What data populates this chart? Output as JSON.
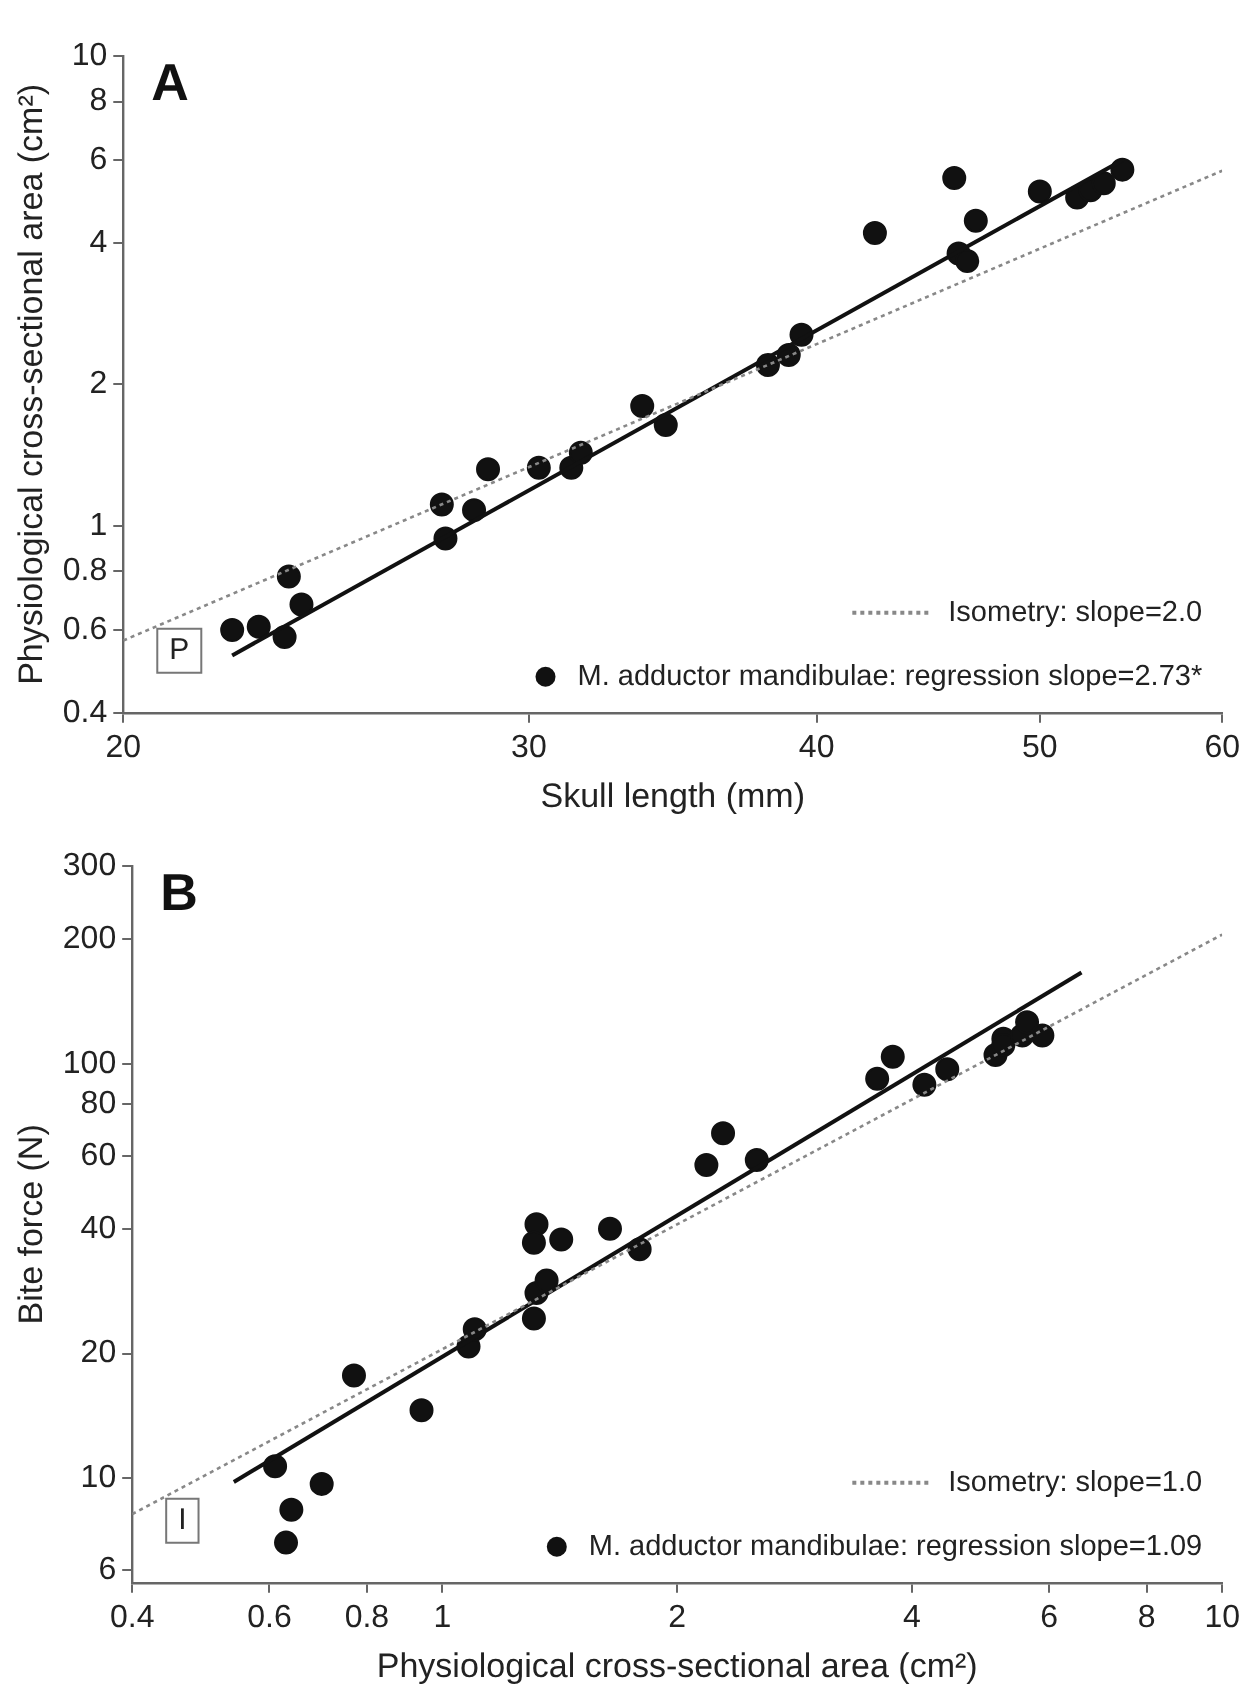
{
  "chart_data": [
    {
      "type": "scatter",
      "annotations": [
        "A",
        "P"
      ],
      "xlabel": "Skull length (mm)",
      "ylabel": "Physiological cross-sectional area (cm²)",
      "log": "xy",
      "grid": false,
      "legend": "bottom right",
      "xlim": [
        20,
        60
      ],
      "xticks": [
        20,
        30,
        40,
        50,
        60
      ],
      "ylim": [
        0.4,
        10
      ],
      "yticks": [
        0.4,
        0.6,
        0.8,
        1,
        2,
        4,
        6,
        8,
        10
      ],
      "series": [
        {
          "name": "Isometry: slope=2.0",
          "type": "line",
          "line_style": "dotted",
          "marker": "none",
          "color": "#888888",
          "x": [
            20,
            60
          ],
          "values": [
            0.57,
            5.7
          ]
        },
        {
          "type": "line",
          "line_style": "solid",
          "marker": "none",
          "color": "#111111",
          "x": [
            22.3,
            54.3
          ],
          "values": [
            0.53,
            6.0
          ]
        },
        {
          "name": "M. adductor mandibulae: regression slope=2.73*",
          "type": "scatter",
          "marker": "circle",
          "color": "#111111",
          "x": [
            22.3,
            22.9,
            23.5,
            23.6,
            23.9,
            27.5,
            27.6,
            28.4,
            28.8,
            30.3,
            31.3,
            31.6,
            33.6,
            34.4,
            38.1,
            38.9,
            39.4,
            42.4,
            45.9,
            46.1,
            46.5,
            46.9,
            50.0,
            51.9,
            52.6,
            53.3,
            54.3
          ],
          "values": [
            0.6,
            0.61,
            0.58,
            0.78,
            0.68,
            1.11,
            0.94,
            1.08,
            1.32,
            1.33,
            1.33,
            1.43,
            1.8,
            1.64,
            2.2,
            2.31,
            2.55,
            4.2,
            5.5,
            3.8,
            3.66,
            4.46,
            5.15,
            5.0,
            5.18,
            5.36,
            5.73
          ]
        }
      ]
    },
    {
      "type": "scatter",
      "annotations": [
        "B",
        "I"
      ],
      "xlabel": "Physiological cross-sectional area (cm²)",
      "ylabel": "Bite force (N)",
      "log": "xy",
      "grid": false,
      "legend": "bottom right",
      "xlim": [
        0.4,
        10
      ],
      "xticks": [
        0.4,
        0.6,
        0.8,
        1,
        2,
        4,
        6,
        8,
        10
      ],
      "ylim": [
        5.6,
        300
      ],
      "yticks": [
        6,
        10,
        20,
        40,
        60,
        80,
        100,
        200,
        300
      ],
      "series": [
        {
          "name": "Isometry: slope=1.0",
          "type": "line",
          "line_style": "dotted",
          "marker": "none",
          "color": "#888888",
          "x": [
            0.4,
            10
          ],
          "values": [
            8.2,
            205
          ]
        },
        {
          "type": "line",
          "line_style": "solid",
          "marker": "none",
          "color": "#111111",
          "x": [
            0.54,
            6.6
          ],
          "values": [
            9.8,
            166
          ]
        },
        {
          "name": "M. adductor mandibulae: regression slope=1.09",
          "type": "scatter",
          "marker": "circle",
          "color": "#111111",
          "x": [
            0.61,
            0.64,
            0.63,
            0.7,
            0.77,
            0.94,
            1.08,
            1.1,
            1.31,
            1.32,
            1.31,
            1.32,
            1.36,
            1.42,
            1.64,
            1.79,
            2.18,
            2.29,
            2.53,
            3.61,
            3.78,
            4.15,
            4.44,
            5.12,
            5.24,
            5.24,
            5.54,
            5.62,
            5.88
          ],
          "values": [
            10.7,
            8.4,
            7.0,
            9.7,
            17.7,
            14.6,
            20.8,
            22.9,
            24.3,
            41,
            37,
            28,
            30,
            37.7,
            40,
            35.7,
            57,
            68,
            58.6,
            92,
            104,
            89,
            97,
            105,
            115,
            111,
            117,
            126,
            117
          ]
        }
      ]
    }
  ]
}
